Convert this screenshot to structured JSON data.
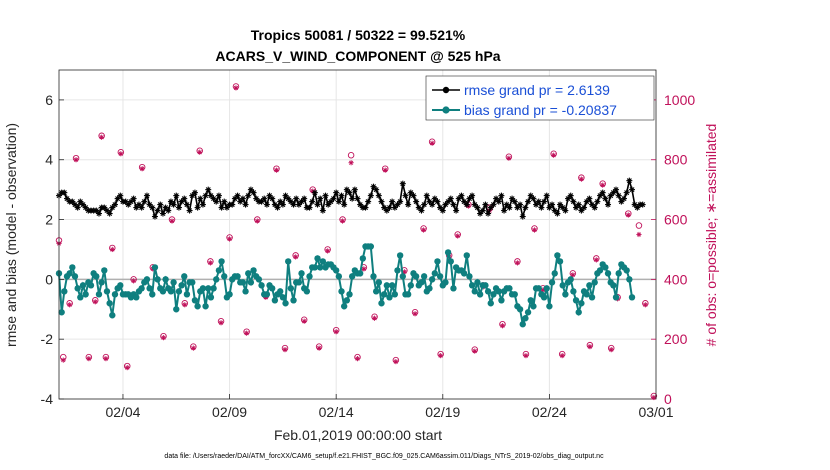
{
  "chart_data": {
    "type": "line",
    "title": "Tropics 50081 / 50322 = 99.521%",
    "subtitle": "ACARS_V_WIND_COMPONENT @ 525 hPa",
    "xlabel": "Feb.01,2019 00:00:00 start",
    "ylabel": "rmse and bias (model - observation)",
    "ylabel_right": "# of obs: o=possible; ∗=assimilated",
    "footnote": "data file: /Users/raeder/DAI/ATM_forcXX/CAM6_setup/f.e21.FHIST_BGC.f09_025.CAM6assim.011/Diags_NTrS_2019-02/obs_diag_output.nc",
    "xlim": [
      1,
      29
    ],
    "ylim": [
      -4,
      7
    ],
    "ylim_right": [
      0,
      1100
    ],
    "yticks": [
      -4,
      -2,
      0,
      2,
      4,
      6
    ],
    "yticks_right": [
      0,
      200,
      400,
      600,
      800,
      1000
    ],
    "xticks": [
      {
        "day": 4,
        "label": "02/04"
      },
      {
        "day": 9,
        "label": "02/09"
      },
      {
        "day": 14,
        "label": "02/14"
      },
      {
        "day": 19,
        "label": "02/19"
      },
      {
        "day": 24,
        "label": "02/24"
      },
      {
        "day": 29,
        "label": "03/01"
      }
    ],
    "legend": [
      {
        "name": "rmse grand pr = 2.6139",
        "color": "#000000"
      },
      {
        "name": "bias grand pr = -0.20837",
        "color": "#0f7f7f"
      }
    ],
    "legend_position": "top-right",
    "colors": {
      "rmse": "#000000",
      "bias": "#0f7f7f",
      "obs": "#c0115a",
      "grid": "#e6e6e6",
      "zero": "#b0b0b0"
    },
    "series": [
      {
        "name": "rmse",
        "x_start": 1,
        "dx": 0.125,
        "values": [
          2.8,
          2.9,
          2.9,
          2.7,
          2.6,
          2.6,
          2.5,
          2.4,
          2.6,
          2.5,
          2.4,
          2.3,
          2.3,
          2.3,
          2.3,
          2.2,
          2.4,
          2.4,
          2.3,
          2.2,
          2.4,
          2.5,
          2.7,
          2.8,
          2.6,
          2.6,
          2.5,
          2.6,
          2.7,
          2.4,
          2.5,
          2.4,
          2.6,
          2.8,
          2.5,
          2.4,
          2.1,
          2.3,
          2.5,
          2.2,
          2.4,
          2.3,
          2.6,
          2.5,
          2.8,
          2.4,
          2.6,
          2.7,
          2.5,
          2.3,
          2.8,
          2.9,
          2.4,
          2.7,
          2.5,
          2.8,
          3.0,
          2.8,
          2.7,
          2.6,
          2.8,
          2.4,
          2.6,
          2.4,
          2.5,
          2.5,
          2.7,
          2.8,
          2.6,
          2.7,
          2.5,
          2.8,
          3.0,
          2.9,
          2.7,
          2.6,
          2.6,
          2.7,
          2.5,
          2.8,
          2.7,
          2.5,
          2.4,
          2.6,
          2.5,
          2.8,
          2.7,
          2.6,
          2.5,
          2.7,
          2.5,
          2.6,
          2.7,
          2.4,
          2.4,
          2.6,
          2.9,
          2.5,
          2.7,
          2.3,
          2.8,
          2.5,
          2.6,
          2.7,
          2.9,
          2.6,
          2.8,
          2.5,
          3.0,
          2.9,
          2.7,
          3.0,
          2.7,
          2.5,
          2.4,
          2.4,
          2.6,
          2.8,
          3.1,
          3.0,
          2.8,
          2.6,
          2.4,
          2.3,
          2.4,
          2.6,
          2.4,
          2.5,
          2.6,
          3.2,
          2.8,
          2.5,
          2.9,
          2.8,
          2.6,
          2.4,
          2.3,
          2.5,
          2.8,
          2.6,
          2.5,
          2.7,
          2.6,
          2.4,
          2.3,
          2.5,
          2.6,
          2.7,
          2.5,
          2.3,
          2.7,
          2.8,
          2.6,
          2.5,
          2.7,
          2.8,
          2.5,
          2.4,
          2.2,
          2.3,
          2.5,
          2.2,
          2.4,
          2.5,
          2.7,
          2.6,
          2.8,
          2.3,
          2.5,
          2.4,
          2.7,
          2.6,
          2.4,
          2.5,
          2.1,
          2.4,
          2.6,
          2.8,
          2.7,
          2.5,
          2.6,
          2.4,
          2.6,
          2.8,
          2.4,
          2.5,
          2.3,
          2.2,
          2.5,
          2.4,
          2.3,
          2.7,
          2.8,
          2.6,
          2.4,
          2.5,
          2.3,
          2.4,
          2.6,
          2.7,
          2.5,
          2.4,
          2.6,
          2.8,
          2.9,
          2.7,
          2.5,
          2.8,
          2.9,
          3.0,
          2.8,
          2.6,
          2.7,
          2.9,
          3.3,
          3.0,
          2.5,
          2.4,
          2.5,
          2.5
        ]
      },
      {
        "name": "bias",
        "x_start": 1,
        "dx": 0.125,
        "values": [
          0.2,
          -1.1,
          -0.4,
          0.1,
          0.2,
          0.4,
          0.1,
          -0.3,
          -0.6,
          -0.2,
          -0.5,
          -0.1,
          -0.2,
          0.2,
          0.1,
          -0.5,
          -0.1,
          0.3,
          -0.4,
          -0.8,
          -1.2,
          -0.5,
          -0.3,
          -0.2,
          -0.5,
          -0.5,
          -0.5,
          -0.6,
          -0.5,
          -0.6,
          -0.4,
          -0.3,
          -0.1,
          0.0,
          -0.3,
          -0.5,
          0.4,
          0.0,
          -0.3,
          -0.4,
          0.0,
          -0.3,
          -0.4,
          -0.1,
          -1.0,
          -0.4,
          -0.2,
          0.1,
          -0.5,
          -0.1,
          -0.1,
          -0.7,
          -0.9,
          -0.4,
          -0.3,
          -0.9,
          -0.3,
          -0.6,
          -0.3,
          0.0,
          0.3,
          0.6,
          0.1,
          -0.6,
          -0.5,
          0.0,
          0.1,
          0.1,
          -0.1,
          -0.1,
          -0.4,
          0.2,
          -0.1,
          0.3,
          0.1,
          0.0,
          -0.2,
          -0.5,
          -0.5,
          -0.2,
          -0.3,
          -0.7,
          -0.5,
          -0.4,
          -0.6,
          -0.8,
          0.6,
          -0.3,
          -0.7,
          -0.1,
          -0.1,
          0.2,
          -0.3,
          -0.4,
          0.1,
          0.4,
          0.4,
          0.7,
          0.4,
          0.6,
          0.4,
          0.5,
          0.5,
          0.4,
          0.3,
          0.1,
          -0.4,
          -0.9,
          -0.7,
          -0.5,
          0.1,
          0.3,
          0.2,
          0.2,
          0.7,
          1.1,
          1.1,
          1.1,
          0.1,
          -0.4,
          -0.1,
          -0.8,
          -0.5,
          -0.2,
          -0.6,
          -0.2,
          -0.5,
          0.3,
          0.8,
          0.1,
          -0.5,
          -0.5,
          -0.2,
          0.2,
          0.1,
          -0.2,
          -0.1,
          0.1,
          -0.4,
          -0.3,
          0.0,
          0.2,
          0.6,
          0.1,
          -0.2,
          -0.1,
          0.9,
          0.6,
          -0.3,
          0.4,
          0.3,
          0.3,
          0.2,
          0.8,
          0.1,
          -0.2,
          -0.4,
          -0.1,
          -0.5,
          -0.2,
          -0.2,
          -0.4,
          -0.8,
          -0.5,
          -0.3,
          -0.4,
          -0.7,
          -0.4,
          -0.3,
          -0.3,
          -0.5,
          -0.5,
          -0.9,
          -1.0,
          -1.5,
          -1.3,
          -1.1,
          -0.7,
          -0.9,
          -0.3,
          -0.3,
          -0.5,
          -0.6,
          -0.3,
          -0.9,
          -0.1,
          0.2,
          0.8,
          0.6,
          -0.2,
          -0.5,
          -0.1,
          0.0,
          -0.4,
          -0.7,
          -1.1,
          -0.8,
          -0.4,
          -0.5,
          -0.2,
          -0.6,
          -0.1,
          0.2,
          0.3,
          0.5,
          0.4,
          0.2,
          -0.1,
          -0.2,
          -0.6,
          0.2,
          0.5,
          0.4,
          0.3,
          0.0,
          -0.6
        ]
      },
      {
        "name": "obs_possible",
        "axis": "right",
        "marker": "o",
        "points": [
          [
            1.0,
            530
          ],
          [
            1.2,
            140
          ],
          [
            1.5,
            320
          ],
          [
            1.8,
            805
          ],
          [
            2.4,
            140
          ],
          [
            2.7,
            330
          ],
          [
            3.0,
            880
          ],
          [
            3.2,
            140
          ],
          [
            3.5,
            505
          ],
          [
            3.9,
            825
          ],
          [
            4.2,
            110
          ],
          [
            4.5,
            400
          ],
          [
            4.9,
            775
          ],
          [
            5.4,
            440
          ],
          [
            5.9,
            210
          ],
          [
            6.3,
            600
          ],
          [
            6.9,
            320
          ],
          [
            7.3,
            175
          ],
          [
            7.6,
            830
          ],
          [
            8.1,
            460
          ],
          [
            8.6,
            260
          ],
          [
            9.0,
            540
          ],
          [
            9.3,
            1045
          ],
          [
            9.8,
            225
          ],
          [
            10.3,
            600
          ],
          [
            10.7,
            345
          ],
          [
            11.2,
            770
          ],
          [
            11.6,
            170
          ],
          [
            12.1,
            480
          ],
          [
            12.5,
            265
          ],
          [
            12.9,
            700
          ],
          [
            13.2,
            175
          ],
          [
            13.6,
            500
          ],
          [
            14.0,
            230
          ],
          [
            14.3,
            600
          ],
          [
            14.7,
            815
          ],
          [
            15.0,
            140
          ],
          [
            15.3,
            440
          ],
          [
            15.8,
            275
          ],
          [
            16.3,
            770
          ],
          [
            16.8,
            130
          ],
          [
            17.2,
            430
          ],
          [
            17.7,
            290
          ],
          [
            18.1,
            570
          ],
          [
            18.5,
            860
          ],
          [
            18.9,
            150
          ],
          [
            19.3,
            480
          ],
          [
            19.7,
            550
          ],
          [
            20.2,
            650
          ],
          [
            20.5,
            165
          ],
          [
            20.9,
            380
          ],
          [
            21.2,
            640
          ],
          [
            21.8,
            250
          ],
          [
            22.1,
            810
          ],
          [
            22.5,
            460
          ],
          [
            22.9,
            150
          ],
          [
            23.3,
            570
          ],
          [
            23.7,
            370
          ],
          [
            24.2,
            820
          ],
          [
            24.6,
            150
          ],
          [
            25.1,
            420
          ],
          [
            25.5,
            740
          ],
          [
            25.9,
            180
          ],
          [
            26.2,
            470
          ],
          [
            26.5,
            720
          ],
          [
            26.9,
            170
          ],
          [
            27.2,
            340
          ],
          [
            27.7,
            620
          ],
          [
            28.2,
            580
          ],
          [
            28.5,
            320
          ],
          [
            28.9,
            10
          ]
        ]
      },
      {
        "name": "obs_assimilated",
        "axis": "right",
        "marker": "*",
        "points": [
          [
            1.0,
            520
          ],
          [
            1.2,
            130
          ],
          [
            1.5,
            315
          ],
          [
            1.8,
            800
          ],
          [
            2.4,
            135
          ],
          [
            2.7,
            325
          ],
          [
            3.0,
            875
          ],
          [
            3.2,
            135
          ],
          [
            3.5,
            500
          ],
          [
            3.9,
            820
          ],
          [
            4.2,
            105
          ],
          [
            4.5,
            395
          ],
          [
            4.9,
            770
          ],
          [
            5.4,
            435
          ],
          [
            5.9,
            205
          ],
          [
            6.3,
            595
          ],
          [
            6.9,
            315
          ],
          [
            7.3,
            170
          ],
          [
            7.6,
            825
          ],
          [
            8.1,
            455
          ],
          [
            8.6,
            255
          ],
          [
            9.0,
            535
          ],
          [
            9.3,
            1040
          ],
          [
            9.8,
            220
          ],
          [
            10.3,
            595
          ],
          [
            10.7,
            340
          ],
          [
            11.2,
            765
          ],
          [
            11.6,
            165
          ],
          [
            12.1,
            475
          ],
          [
            12.5,
            260
          ],
          [
            12.9,
            695
          ],
          [
            13.2,
            170
          ],
          [
            13.6,
            495
          ],
          [
            14.0,
            225
          ],
          [
            14.3,
            595
          ],
          [
            14.7,
            790
          ],
          [
            15.0,
            135
          ],
          [
            15.3,
            435
          ],
          [
            15.8,
            270
          ],
          [
            16.3,
            765
          ],
          [
            16.8,
            125
          ],
          [
            17.2,
            425
          ],
          [
            17.7,
            285
          ],
          [
            18.1,
            565
          ],
          [
            18.5,
            855
          ],
          [
            18.9,
            145
          ],
          [
            19.3,
            475
          ],
          [
            19.7,
            545
          ],
          [
            20.2,
            645
          ],
          [
            20.5,
            160
          ],
          [
            20.9,
            375
          ],
          [
            21.2,
            630
          ],
          [
            21.8,
            245
          ],
          [
            22.1,
            805
          ],
          [
            22.5,
            455
          ],
          [
            22.9,
            145
          ],
          [
            23.3,
            565
          ],
          [
            23.7,
            365
          ],
          [
            24.2,
            815
          ],
          [
            24.6,
            145
          ],
          [
            25.1,
            415
          ],
          [
            25.5,
            735
          ],
          [
            25.9,
            175
          ],
          [
            26.2,
            465
          ],
          [
            26.5,
            715
          ],
          [
            26.9,
            165
          ],
          [
            27.2,
            335
          ],
          [
            27.7,
            615
          ],
          [
            28.2,
            550
          ],
          [
            28.5,
            315
          ],
          [
            28.9,
            5
          ]
        ]
      }
    ]
  }
}
